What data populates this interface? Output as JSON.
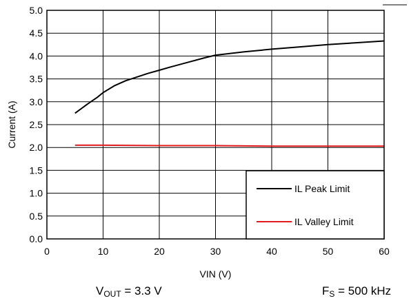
{
  "chart_data": {
    "type": "line",
    "xlabel": "VIN (V)",
    "ylabel": "Current (A)",
    "xlim": [
      0,
      60
    ],
    "ylim": [
      0,
      5
    ],
    "x_ticks": [
      0,
      10,
      20,
      30,
      40,
      50,
      60
    ],
    "y_ticks": [
      0.0,
      0.5,
      1.0,
      1.5,
      2.0,
      2.5,
      3.0,
      3.5,
      4.0,
      4.5,
      5.0
    ],
    "x_tick_labels": [
      "0",
      "10",
      "20",
      "30",
      "40",
      "50",
      "60"
    ],
    "y_tick_labels": [
      "0.0",
      "0.5",
      "1.0",
      "1.5",
      "2.0",
      "2.5",
      "3.0",
      "3.5",
      "4.0",
      "4.5",
      "5.0"
    ],
    "grid": true,
    "legend_position": "bottom-right",
    "series": [
      {
        "name": "IL Peak Limit",
        "color": "#000000",
        "x": [
          5,
          7,
          9,
          10,
          12,
          14,
          16,
          18,
          20,
          22,
          25,
          28,
          30,
          35,
          40,
          45,
          50,
          55,
          60
        ],
        "y": [
          2.75,
          2.93,
          3.1,
          3.2,
          3.35,
          3.46,
          3.54,
          3.62,
          3.69,
          3.76,
          3.86,
          3.96,
          4.02,
          4.09,
          4.15,
          4.2,
          4.25,
          4.29,
          4.33
        ]
      },
      {
        "name": "IL Valley Limit",
        "color": "#e31a1c",
        "x": [
          5,
          10,
          20,
          30,
          40,
          50,
          60
        ],
        "y": [
          2.05,
          2.05,
          2.04,
          2.04,
          2.03,
          2.03,
          2.03
        ]
      }
    ]
  },
  "notes": {
    "vout_label": "V",
    "vout_sub": "OUT",
    "vout_value": " = 3.3 V",
    "fs_label": "F",
    "fs_sub": "S",
    "fs_value": " = 500 kHz"
  }
}
